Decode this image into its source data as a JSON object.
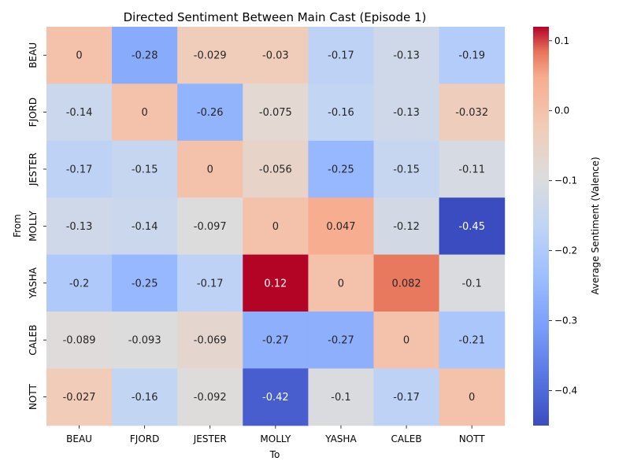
{
  "chart_data": {
    "type": "heatmap",
    "title": "Directed Sentiment Between Main Cast (Episode 1)",
    "xlabel": "To",
    "ylabel": "From",
    "x_categories": [
      "BEAU",
      "FJORD",
      "JESTER",
      "MOLLY",
      "YASHA",
      "CALEB",
      "NOTT"
    ],
    "y_categories": [
      "BEAU",
      "FJORD",
      "JESTER",
      "MOLLY",
      "YASHA",
      "CALEB",
      "NOTT"
    ],
    "values": [
      [
        0,
        -0.28,
        -0.029,
        -0.03,
        -0.17,
        -0.13,
        -0.19
      ],
      [
        -0.14,
        0,
        -0.26,
        -0.075,
        -0.16,
        -0.13,
        -0.032
      ],
      [
        -0.17,
        -0.15,
        0,
        -0.056,
        -0.25,
        -0.15,
        -0.11
      ],
      [
        -0.13,
        -0.14,
        -0.097,
        0,
        0.047,
        -0.12,
        -0.45
      ],
      [
        -0.2,
        -0.25,
        -0.17,
        0.12,
        0,
        0.082,
        -0.1
      ],
      [
        -0.089,
        -0.093,
        -0.069,
        -0.27,
        -0.27,
        0,
        -0.21
      ],
      [
        -0.027,
        -0.16,
        -0.092,
        -0.42,
        -0.1,
        -0.17,
        0
      ]
    ],
    "value_labels": [
      [
        "0",
        "-0.28",
        "-0.029",
        "-0.03",
        "-0.17",
        "-0.13",
        "-0.19"
      ],
      [
        "-0.14",
        "0",
        "-0.26",
        "-0.075",
        "-0.16",
        "-0.13",
        "-0.032"
      ],
      [
        "-0.17",
        "-0.15",
        "0",
        "-0.056",
        "-0.25",
        "-0.15",
        "-0.11"
      ],
      [
        "-0.13",
        "-0.14",
        "-0.097",
        "0",
        "0.047",
        "-0.12",
        "-0.45"
      ],
      [
        "-0.2",
        "-0.25",
        "-0.17",
        "0.12",
        "0",
        "0.082",
        "-0.1"
      ],
      [
        "-0.089",
        "-0.093",
        "-0.069",
        "-0.27",
        "-0.27",
        "0",
        "-0.21"
      ],
      [
        "-0.027",
        "-0.16",
        "-0.092",
        "-0.42",
        "-0.1",
        "-0.17",
        "0"
      ]
    ],
    "colormap": "coolwarm",
    "vmin": -0.45,
    "vmax": 0.12,
    "colorbar": {
      "label": "Average Sentiment (Valence)",
      "ticks": [
        0.1,
        0.0,
        -0.1,
        -0.2,
        -0.3,
        -0.4
      ],
      "tick_labels": [
        "0.1",
        "0.0",
        "−0.1",
        "−0.2",
        "−0.3",
        "−0.4"
      ],
      "placement": "right"
    }
  }
}
